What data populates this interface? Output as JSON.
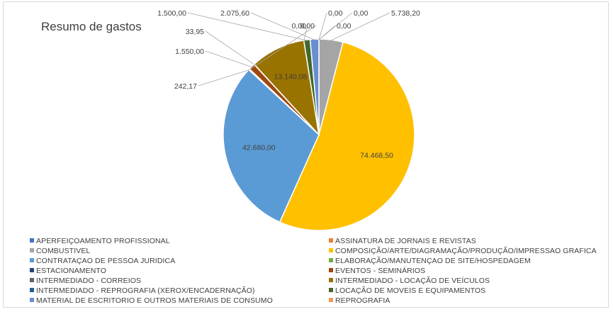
{
  "chart_data": {
    "type": "pie",
    "title": "Resumo de gastos",
    "legend_position": "bottom",
    "categories": [
      "APERFEIÇOAMENTO PROFISSIONAL",
      "ASSINATURA DE JORNAIS E REVISTAS",
      "COMBUSTIVEL",
      "COMPOSIÇÃO/ARTE/DIAGRAMAÇÃO/PRODUÇÃO/IMPRESSAO GRAFICA",
      "CONTRATAÇAO DE PESSOA JURIDICA",
      "ELABORAÇÃO/MANUTENÇAO DE SITE/HOSPEDAGEM",
      "ESTACIONAMENTO",
      "EVENTOS - SEMINÁRIOS",
      "INTERMEDIADO - CORREIOS",
      "INTERMEDIADO - LOCAÇÃO DE VEÍCULOS",
      "INTERMEDIADO - REPROGRAFIA (XEROX/ENCADERNAÇÃO)",
      "LOCAÇÃO DE MOVEIS E EQUIPAMENTOS",
      "MATERIAL DE ESCRITORIO E OUTROS MATERIAIS DE CONSUMO",
      "REPROGRAFIA"
    ],
    "values": [
      0,
      0,
      5738.2,
      74468.5,
      42680.0,
      242.17,
      0,
      1550.0,
      33.95,
      13140.08,
      0,
      1500.0,
      2075.6,
      0
    ],
    "data_labels": [
      "0,00",
      "0,00",
      "5.738,20",
      "74.468,50",
      "42.680,00",
      "242,17",
      "0,00",
      "1.550,00",
      "33,95",
      "13.140,08",
      "0,00",
      "1.500,00",
      "2.075,60",
      "0,00"
    ],
    "colors": [
      "#4472c4",
      "#ed7d31",
      "#a5a5a5",
      "#ffc000",
      "#5b9bd5",
      "#70ad47",
      "#264478",
      "#9e480e",
      "#636363",
      "#997300",
      "#255e91",
      "#43682b",
      "#698ed0",
      "#f1975a"
    ]
  }
}
